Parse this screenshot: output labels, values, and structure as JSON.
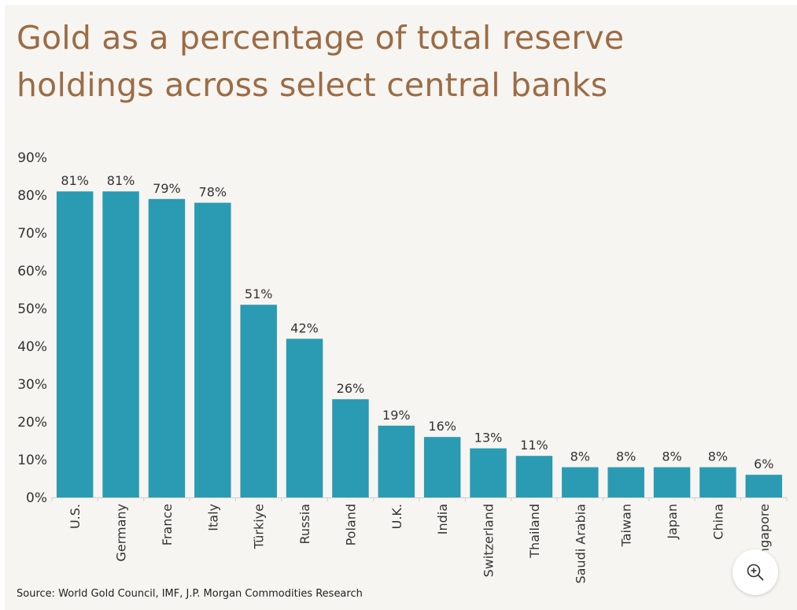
{
  "title": "Gold as a percentage of total reserve holdings across select central banks",
  "source": "Source: World Gold Council, IMF, J.P. Morgan Commodities Research",
  "zoom_icon": "zoom-in-icon",
  "colors": {
    "bar": "#2a9bb3",
    "title": "#9b6c46",
    "background": "#f7f5f1"
  },
  "chart_data": {
    "type": "bar",
    "categories": [
      "U.S.",
      "Germany",
      "France",
      "Italy",
      "Türkiye",
      "Russia",
      "Poland",
      "U.K.",
      "India",
      "Switzerland",
      "Thailand",
      "Saudi Arabia",
      "Taiwan",
      "Japan",
      "China",
      "Singapore"
    ],
    "values": [
      81,
      81,
      79,
      78,
      51,
      42,
      26,
      19,
      16,
      13,
      11,
      8,
      8,
      8,
      8,
      6
    ],
    "data_labels": [
      "81%",
      "81%",
      "79%",
      "78%",
      "51%",
      "42%",
      "26%",
      "19%",
      "16%",
      "13%",
      "11%",
      "8%",
      "8%",
      "8%",
      "8%",
      "6%"
    ],
    "yticks": [
      0,
      10,
      20,
      30,
      40,
      50,
      60,
      70,
      80,
      90
    ],
    "ytick_labels": [
      "0%",
      "10%",
      "20%",
      "30%",
      "40%",
      "50%",
      "60%",
      "70%",
      "80%",
      "90%"
    ],
    "ylim": [
      0,
      90
    ],
    "grid": false,
    "legend": "none"
  }
}
